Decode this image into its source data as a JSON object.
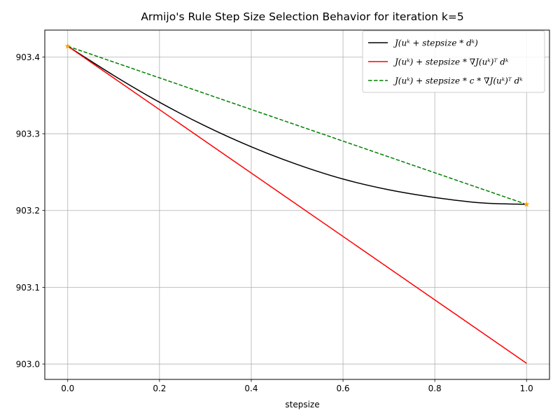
{
  "chart_data": {
    "type": "line",
    "title": "Armijo's Rule Step Size Selection Behavior for iteration k=5",
    "xlabel": "stepsize",
    "ylabel": "",
    "xlim": [
      -0.05,
      1.05
    ],
    "ylim": [
      902.98,
      903.435
    ],
    "xticks": [
      0.0,
      0.2,
      0.4,
      0.6,
      0.8,
      1.0
    ],
    "xtick_labels": [
      "0.0",
      "0.2",
      "0.4",
      "0.6",
      "0.8",
      "1.0"
    ],
    "yticks": [
      903.0,
      903.1,
      903.2,
      903.3,
      903.4
    ],
    "ytick_labels": [
      "903.0",
      "903.1",
      "903.2",
      "903.3",
      "903.4"
    ],
    "grid": true,
    "legend_position": "top-right",
    "series": [
      {
        "name": "J(uᵏ + stepsize * dᵏ)",
        "color": "#000000",
        "dash": "solid",
        "x": [
          0.0,
          0.1,
          0.2,
          0.3,
          0.4,
          0.5,
          0.6,
          0.7,
          0.8,
          0.9,
          1.0
        ],
        "y": [
          903.414,
          903.376,
          903.341,
          903.31,
          903.283,
          903.26,
          903.241,
          903.227,
          903.217,
          903.21,
          903.208
        ]
      },
      {
        "name": "J(uᵏ) + stepsize * ∇J(uᵏ)ᵀ dᵏ",
        "color": "#ff0000",
        "dash": "solid",
        "x": [
          0.0,
          1.0
        ],
        "y": [
          903.414,
          903.001
        ]
      },
      {
        "name": "J(uᵏ) + stepsize * c * ∇J(uᵏ)ᵀ dᵏ",
        "color": "#008000",
        "dash": "dashed",
        "x": [
          0.0,
          1.0
        ],
        "y": [
          903.414,
          903.208
        ]
      }
    ],
    "markers": [
      {
        "x": 0.0,
        "y": 903.414,
        "color": "#ffa500",
        "shape": "star"
      },
      {
        "x": 1.0,
        "y": 903.208,
        "color": "#ffa500",
        "shape": "star"
      }
    ]
  }
}
